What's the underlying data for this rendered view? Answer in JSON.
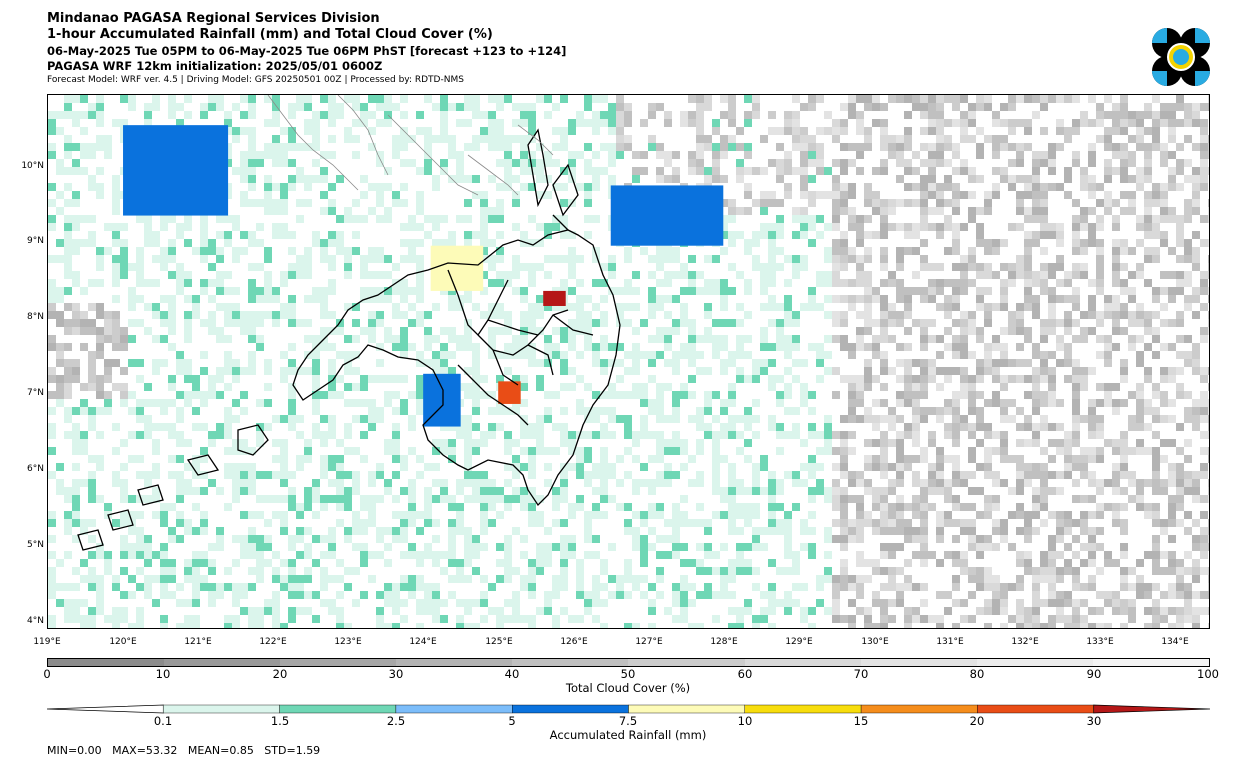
{
  "header": {
    "line1": "Mindanao PAGASA Regional Services Division",
    "line2": "1-hour Accumulated Rainfall (mm) and Total Cloud Cover (%)",
    "line3": "06-May-2025 Tue 05PM to 06-May-2025 Tue 06PM PhST [forecast +123 to +124]",
    "line4": "PAGASA WRF 12km initialization: 2025/05/01 0600Z",
    "line5": "Forecast Model: WRF ver. 4.5 | Driving Model: GFS 20250501 00Z | Processed by: RDTD-NMS"
  },
  "logo": {
    "icon": "pagasa-logo",
    "colors": [
      "#000000",
      "#29abe2",
      "#f5d300"
    ]
  },
  "map": {
    "lon_labels": [
      "119°E",
      "120°E",
      "121°E",
      "122°E",
      "123°E",
      "124°E",
      "125°E",
      "126°E",
      "127°E",
      "128°E",
      "129°E",
      "130°E",
      "131°E",
      "132°E",
      "133°E",
      "134°E"
    ],
    "lat_labels": [
      "10°N",
      "9°N",
      "8°N",
      "7°N",
      "6°N",
      "5°N",
      "4°N"
    ]
  },
  "cloud_legend": {
    "title": "Total Cloud Cover (%)",
    "labels": [
      "0",
      "10",
      "20",
      "30",
      "40",
      "50",
      "60",
      "70",
      "80",
      "90",
      "100"
    ],
    "colors": [
      "#8c8c8c",
      "#999999",
      "#a6a6a6",
      "#b3b3b3",
      "#c0c0c0",
      "#cccccc",
      "#d9d9d9",
      "#e3e3e3",
      "#ececec",
      "#f4f4f4"
    ]
  },
  "rain_legend": {
    "title": "Accumulated Rainfall (mm)",
    "labels": [
      "0.1",
      "1.5",
      "2.5",
      "5",
      "7.5",
      "10",
      "15",
      "20",
      "30"
    ],
    "colors": [
      "#ffffff",
      "#dbf5ec",
      "#6fd7b5",
      "#7cbdfa",
      "#0a72dd",
      "#fdfbb8",
      "#f7dd0d",
      "#f58d1c",
      "#e94d16",
      "#b51717"
    ]
  },
  "stats": {
    "text": "MIN=0.00   MAX=53.32   MEAN=0.85   STD=1.59"
  },
  "chart_data": {
    "type": "heatmap",
    "variables": [
      "1-hour Accumulated Rainfall (mm)",
      "Total Cloud Cover (%)"
    ],
    "lon_range": [
      119,
      134.5
    ],
    "lat_range": [
      3.9,
      11.0
    ],
    "rain_bounds": [
      0.1,
      1.5,
      2.5,
      5,
      7.5,
      10,
      15,
      20,
      30
    ],
    "cloud_bounds": [
      0,
      10,
      20,
      30,
      40,
      50,
      60,
      70,
      80,
      90,
      100
    ],
    "stats": {
      "min": 0.0,
      "max": 53.32,
      "mean": 0.85,
      "std": 1.59
    },
    "rain_areas": [
      {
        "lon": [
          124.1,
          124.8
        ],
        "lat": [
          8.4,
          9.0
        ],
        "rain_mm": 7.5
      },
      {
        "lon": [
          125.6,
          125.9
        ],
        "lat": [
          8.2,
          8.4
        ],
        "rain_mm": 30
      },
      {
        "lon": [
          124.0,
          124.5
        ],
        "lat": [
          6.6,
          7.3
        ],
        "rain_mm": 5
      },
      {
        "lon": [
          126.5,
          128.0
        ],
        "lat": [
          9.0,
          9.8
        ],
        "rain_mm": 5
      },
      {
        "lon": [
          120.0,
          121.4
        ],
        "lat": [
          9.4,
          10.6
        ],
        "rain_mm": 5
      },
      {
        "lon": [
          125.0,
          125.3
        ],
        "lat": [
          6.9,
          7.2
        ],
        "rain_mm": 20
      }
    ]
  }
}
